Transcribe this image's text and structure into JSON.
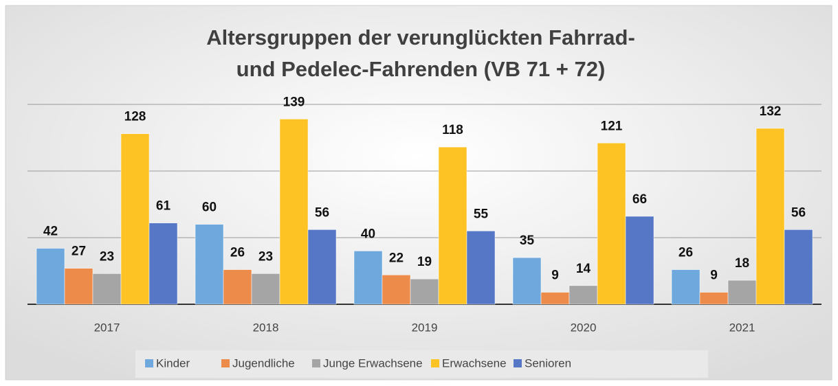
{
  "chart_data": {
    "type": "bar",
    "title": [
      "Altersgruppen der verunglückten Fahrrad-",
      "und Pedelec-Fahrenden (VB 71 + 72)"
    ],
    "categories": [
      "2017",
      "2018",
      "2019",
      "2020",
      "2021"
    ],
    "series": [
      {
        "name": "Kinder",
        "color": "#6fa8dc",
        "values": [
          42,
          60,
          40,
          35,
          26
        ]
      },
      {
        "name": "Jugendliche",
        "color": "#ed8b4a",
        "values": [
          27,
          26,
          22,
          9,
          9
        ]
      },
      {
        "name": "Junge Erwachsene",
        "color": "#a5a5a5",
        "values": [
          23,
          23,
          19,
          14,
          18
        ]
      },
      {
        "name": "Erwachsene",
        "color": "#fdc324",
        "values": [
          128,
          139,
          118,
          121,
          132
        ]
      },
      {
        "name": "Senioren",
        "color": "#5577c6",
        "values": [
          61,
          56,
          55,
          66,
          56
        ]
      }
    ],
    "ylim": [
      0,
      150
    ],
    "yticks": [
      0,
      50,
      100,
      150
    ],
    "grid": true
  }
}
